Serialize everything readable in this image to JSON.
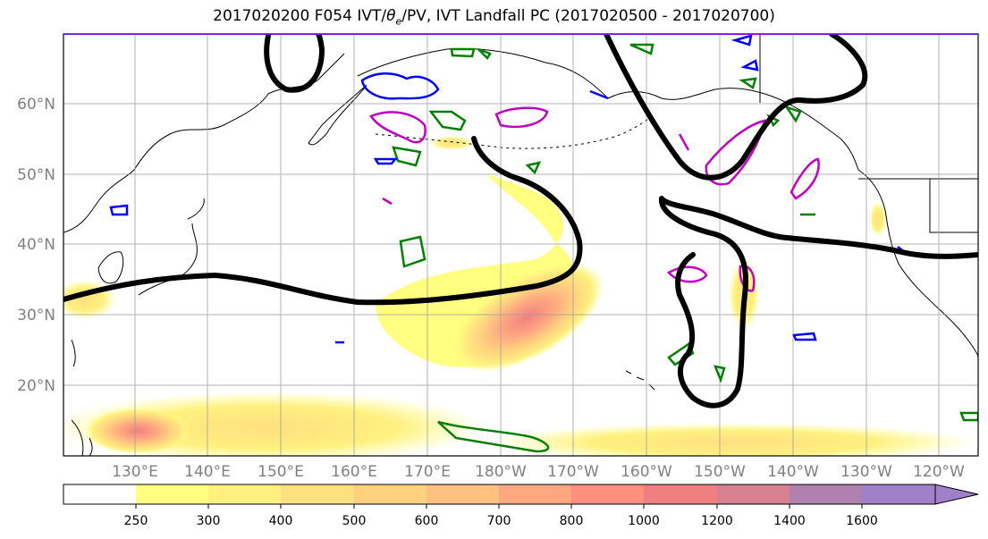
{
  "title": {
    "prefix": "2017020200 F054 IVT/",
    "theta": "θ",
    "theta_sub": "e",
    "suffix": "/PV, IVT Landfall PC (2017020500 - 2017020700)"
  },
  "map": {
    "lat_labels": [
      "60°N",
      "50°N",
      "40°N",
      "30°N",
      "20°N"
    ],
    "lat_values": [
      60,
      50,
      40,
      30,
      20
    ],
    "lon_labels": [
      "130°E",
      "140°E",
      "150°E",
      "160°E",
      "170°E",
      "180°W",
      "170°W",
      "160°W",
      "150°W",
      "140°W",
      "130°W",
      "120°W"
    ],
    "lon_values": [
      130,
      140,
      150,
      160,
      170,
      180,
      190,
      200,
      210,
      220,
      230,
      240
    ],
    "extent": {
      "lon_min": 120,
      "lon_max": 245,
      "lat_min": 10,
      "lat_max": 70
    },
    "tick_label_color": "#808080",
    "grid": true,
    "contour_colors": {
      "jet": "#000000",
      "theta_e": "#008000",
      "pv_low": "#0000ff",
      "pv_high": "#c000c0"
    }
  },
  "colorbar": {
    "ticks": [
      "250",
      "300",
      "400",
      "500",
      "600",
      "700",
      "800",
      "1000",
      "1200",
      "1400",
      "1600"
    ],
    "colors": [
      "#ffffff",
      "#ffff80",
      "#fff080",
      "#ffe080",
      "#ffd080",
      "#ffc080",
      "#ffa880",
      "#ff9080",
      "#f08080",
      "#d88090",
      "#b080b0",
      "#a080c8"
    ],
    "extend": "max"
  }
}
